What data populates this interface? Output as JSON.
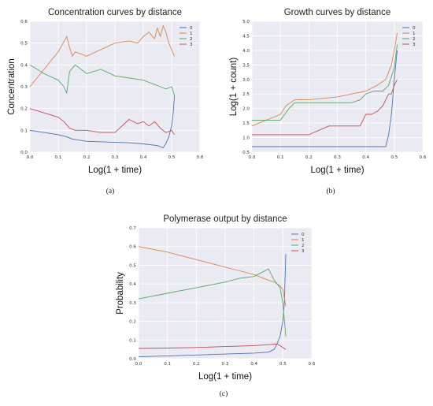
{
  "figure": {
    "captions": [
      "(a)",
      "(b)",
      "(c)"
    ]
  },
  "legend_labels": [
    "0",
    "1",
    "2",
    "3"
  ],
  "colors": {
    "background": "#eaeaf2",
    "grid": "#ffffff",
    "series": [
      "#4c72b0",
      "#dd8452",
      "#55a868",
      "#c44e52"
    ]
  },
  "chart_data": [
    {
      "type": "line",
      "title": "Concentration curves by distance",
      "xlabel": "Log(1 + time)",
      "ylabel": "Concentration",
      "xlim": [
        0.0,
        0.6
      ],
      "ylim": [
        0.0,
        0.6
      ],
      "xticks": [
        "0.0",
        "0.1",
        "0.2",
        "0.3",
        "0.4",
        "0.5",
        "0.6"
      ],
      "yticks": [
        "0.0",
        "0.1",
        "0.2",
        "0.3",
        "0.4",
        "0.5",
        "0.6"
      ],
      "grid": true,
      "legend": "top-right",
      "series": [
        {
          "name": "0",
          "x": [
            0.0,
            0.05,
            0.1,
            0.13,
            0.15,
            0.2,
            0.3,
            0.35,
            0.4,
            0.45,
            0.47,
            0.48,
            0.49,
            0.5,
            0.505,
            0.51
          ],
          "y": [
            0.1,
            0.09,
            0.08,
            0.07,
            0.06,
            0.05,
            0.045,
            0.043,
            0.038,
            0.03,
            0.02,
            0.04,
            0.07,
            0.12,
            0.17,
            0.26
          ]
        },
        {
          "name": "1",
          "x": [
            0.0,
            0.05,
            0.1,
            0.13,
            0.14,
            0.15,
            0.16,
            0.2,
            0.3,
            0.35,
            0.38,
            0.4,
            0.42,
            0.44,
            0.45,
            0.46,
            0.47,
            0.48,
            0.49,
            0.5,
            0.51
          ],
          "y": [
            0.3,
            0.38,
            0.46,
            0.53,
            0.48,
            0.44,
            0.46,
            0.44,
            0.5,
            0.51,
            0.5,
            0.53,
            0.55,
            0.52,
            0.57,
            0.53,
            0.58,
            0.55,
            0.5,
            0.47,
            0.44
          ]
        },
        {
          "name": "2",
          "x": [
            0.0,
            0.05,
            0.1,
            0.12,
            0.13,
            0.14,
            0.16,
            0.2,
            0.25,
            0.3,
            0.35,
            0.4,
            0.42,
            0.44,
            0.46,
            0.48,
            0.5,
            0.51
          ],
          "y": [
            0.4,
            0.36,
            0.33,
            0.3,
            0.27,
            0.37,
            0.4,
            0.36,
            0.38,
            0.35,
            0.34,
            0.33,
            0.32,
            0.31,
            0.3,
            0.29,
            0.3,
            0.26
          ]
        },
        {
          "name": "3",
          "x": [
            0.0,
            0.05,
            0.1,
            0.12,
            0.14,
            0.16,
            0.2,
            0.25,
            0.3,
            0.35,
            0.38,
            0.4,
            0.42,
            0.44,
            0.46,
            0.48,
            0.5,
            0.51
          ],
          "y": [
            0.2,
            0.18,
            0.16,
            0.14,
            0.11,
            0.1,
            0.1,
            0.09,
            0.09,
            0.15,
            0.13,
            0.14,
            0.12,
            0.14,
            0.11,
            0.09,
            0.1,
            0.08
          ]
        }
      ]
    },
    {
      "type": "line",
      "title": "Growth curves by distance",
      "xlabel": "Log(1 + time)",
      "ylabel": "Log(1 + count)",
      "xlim": [
        0.0,
        0.6
      ],
      "ylim": [
        0.5,
        5.0
      ],
      "xticks": [
        "0.0",
        "0.1",
        "0.2",
        "0.3",
        "0.4",
        "0.5",
        "0.6"
      ],
      "yticks": [
        "0.5",
        "1.0",
        "1.5",
        "2.0",
        "2.5",
        "3.0",
        "3.5",
        "4.0",
        "4.5",
        "5.0"
      ],
      "grid": true,
      "legend": "top-right",
      "series": [
        {
          "name": "0",
          "x": [
            0.0,
            0.1,
            0.2,
            0.3,
            0.4,
            0.47,
            0.48,
            0.49,
            0.5,
            0.51
          ],
          "y": [
            0.69,
            0.69,
            0.69,
            0.69,
            0.69,
            0.69,
            1.1,
            1.8,
            3.0,
            4.0
          ]
        },
        {
          "name": "1",
          "x": [
            0.0,
            0.05,
            0.1,
            0.12,
            0.15,
            0.2,
            0.25,
            0.3,
            0.35,
            0.4,
            0.44,
            0.47,
            0.49,
            0.5,
            0.51
          ],
          "y": [
            1.4,
            1.6,
            1.8,
            2.1,
            2.3,
            2.3,
            2.35,
            2.4,
            2.5,
            2.6,
            2.8,
            3.0,
            3.5,
            4.0,
            4.6
          ]
        },
        {
          "name": "2",
          "x": [
            0.0,
            0.1,
            0.13,
            0.15,
            0.2,
            0.3,
            0.35,
            0.38,
            0.4,
            0.43,
            0.46,
            0.48,
            0.5,
            0.51
          ],
          "y": [
            1.6,
            1.6,
            2.0,
            2.2,
            2.2,
            2.2,
            2.2,
            2.3,
            2.5,
            2.6,
            2.6,
            2.8,
            3.4,
            4.2
          ]
        },
        {
          "name": "3",
          "x": [
            0.0,
            0.1,
            0.2,
            0.27,
            0.38,
            0.39,
            0.4,
            0.42,
            0.44,
            0.46,
            0.48,
            0.49,
            0.5,
            0.51
          ],
          "y": [
            1.1,
            1.1,
            1.1,
            1.4,
            1.4,
            1.6,
            1.8,
            1.8,
            1.9,
            2.1,
            2.5,
            2.5,
            2.8,
            3.0
          ]
        }
      ]
    },
    {
      "type": "line",
      "title": "Polymerase output by distance",
      "xlabel": "Log(1 + time)",
      "ylabel": "Probability",
      "xlim": [
        0.0,
        0.6
      ],
      "ylim": [
        0.0,
        0.7
      ],
      "xticks": [
        "0.0",
        "0.1",
        "0.2",
        "0.3",
        "0.4",
        "0.5",
        "0.6"
      ],
      "yticks": [
        "0.0",
        "0.1",
        "0.2",
        "0.3",
        "0.4",
        "0.5",
        "0.6",
        "0.7"
      ],
      "grid": true,
      "legend": "top-right",
      "series": [
        {
          "name": "0",
          "x": [
            0.0,
            0.1,
            0.2,
            0.3,
            0.4,
            0.45,
            0.47,
            0.48,
            0.49,
            0.5,
            0.505,
            0.51
          ],
          "y": [
            0.01,
            0.015,
            0.02,
            0.025,
            0.03,
            0.035,
            0.05,
            0.08,
            0.12,
            0.2,
            0.3,
            0.56
          ]
        },
        {
          "name": "1",
          "x": [
            0.0,
            0.1,
            0.2,
            0.3,
            0.35,
            0.4,
            0.45,
            0.47,
            0.48,
            0.49,
            0.5,
            0.51
          ],
          "y": [
            0.6,
            0.57,
            0.53,
            0.49,
            0.47,
            0.45,
            0.42,
            0.41,
            0.4,
            0.39,
            0.37,
            0.28
          ]
        },
        {
          "name": "2",
          "x": [
            0.0,
            0.1,
            0.2,
            0.3,
            0.35,
            0.4,
            0.45,
            0.46,
            0.47,
            0.48,
            0.49,
            0.5,
            0.51
          ],
          "y": [
            0.32,
            0.35,
            0.38,
            0.41,
            0.43,
            0.44,
            0.48,
            0.45,
            0.42,
            0.4,
            0.38,
            0.3,
            0.12
          ]
        },
        {
          "name": "3",
          "x": [
            0.0,
            0.1,
            0.2,
            0.3,
            0.4,
            0.45,
            0.47,
            0.48,
            0.49,
            0.5,
            0.51
          ],
          "y": [
            0.055,
            0.057,
            0.06,
            0.065,
            0.07,
            0.075,
            0.078,
            0.078,
            0.07,
            0.06,
            0.05
          ]
        }
      ]
    }
  ]
}
